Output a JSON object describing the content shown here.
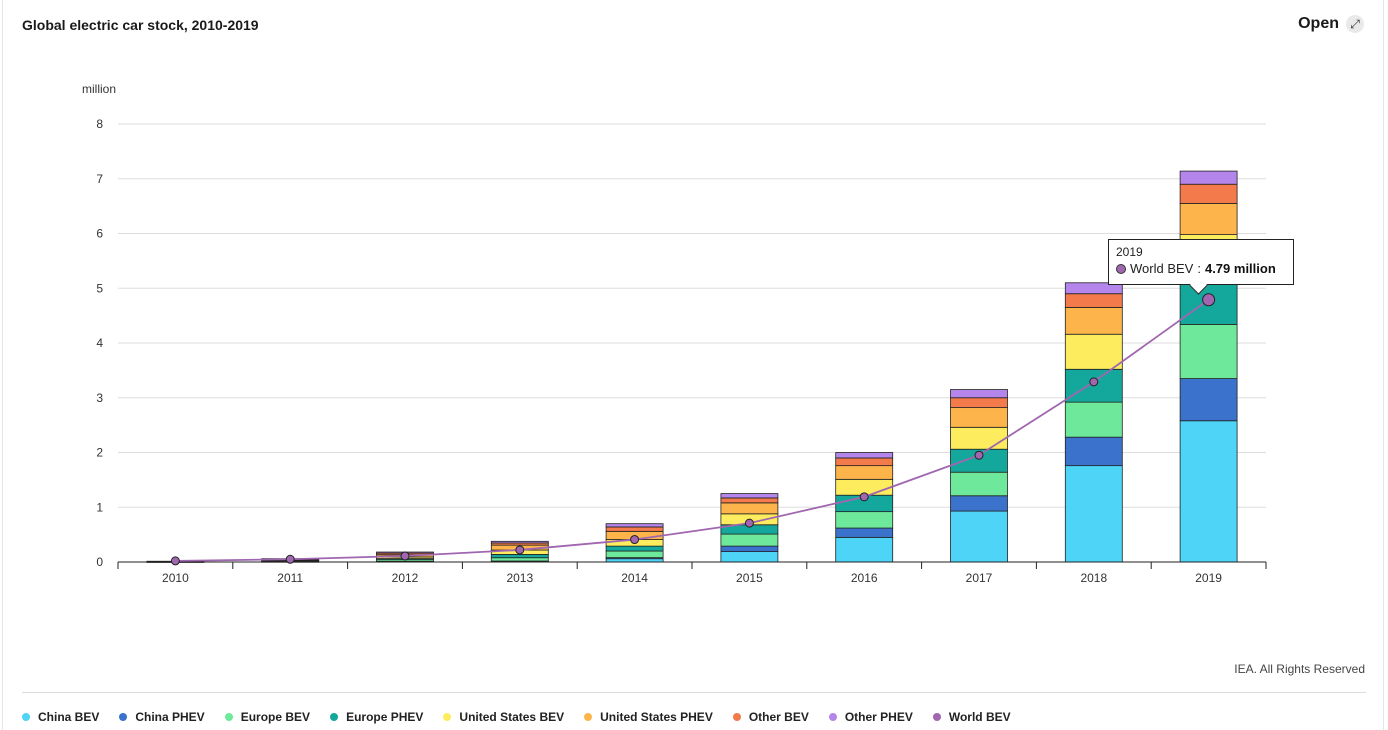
{
  "header": {
    "title": "Global electric car stock, 2010-2019",
    "open_label": "Open",
    "open_icon": "expand-icon"
  },
  "footer": {
    "credit": "IEA. All Rights Reserved"
  },
  "tooltip": {
    "year": "2019",
    "series": "World BEV",
    "value": "4.79 million"
  },
  "chart_data": {
    "type": "bar",
    "stacked": true,
    "unit_label": "million",
    "ylim": [
      0,
      8
    ],
    "yticks": [
      0,
      1,
      2,
      3,
      4,
      5,
      6,
      7,
      8
    ],
    "grid": true,
    "legend_position": "bottom",
    "categories": [
      "2010",
      "2011",
      "2012",
      "2013",
      "2014",
      "2015",
      "2016",
      "2017",
      "2018",
      "2019"
    ],
    "series": [
      {
        "name": "China BEV",
        "color": "#4dd4f7",
        "values": [
          0.001,
          0.005,
          0.01,
          0.015,
          0.06,
          0.19,
          0.45,
          0.93,
          1.76,
          2.58
        ]
      },
      {
        "name": "China PHEV",
        "color": "#3b73cc",
        "values": [
          0.0,
          0.0,
          0.002,
          0.003,
          0.02,
          0.1,
          0.17,
          0.28,
          0.52,
          0.77
        ]
      },
      {
        "name": "Europe BEV",
        "color": "#6ee89a",
        "values": [
          0.005,
          0.01,
          0.03,
          0.06,
          0.12,
          0.22,
          0.3,
          0.43,
          0.64,
          0.99
        ]
      },
      {
        "name": "Europe PHEV",
        "color": "#14a89c",
        "values": [
          0.0,
          0.005,
          0.02,
          0.06,
          0.09,
          0.17,
          0.3,
          0.42,
          0.6,
          0.76
        ]
      },
      {
        "name": "United States BEV",
        "color": "#fded5e",
        "values": [
          0.003,
          0.01,
          0.03,
          0.08,
          0.12,
          0.2,
          0.29,
          0.4,
          0.64,
          0.88
        ]
      },
      {
        "name": "United States PHEV",
        "color": "#fdb44b",
        "values": [
          0.0,
          0.008,
          0.04,
          0.09,
          0.15,
          0.2,
          0.25,
          0.36,
          0.49,
          0.57
        ]
      },
      {
        "name": "Other BEV",
        "color": "#f37a4a",
        "values": [
          0.005,
          0.02,
          0.03,
          0.04,
          0.08,
          0.09,
          0.14,
          0.18,
          0.25,
          0.35
        ]
      },
      {
        "name": "Other PHEV",
        "color": "#b485ea",
        "values": [
          0.0,
          0.002,
          0.02,
          0.03,
          0.06,
          0.08,
          0.1,
          0.15,
          0.2,
          0.24
        ]
      }
    ],
    "line_series": {
      "name": "World BEV",
      "color": "#a066b0",
      "values": [
        0.02,
        0.05,
        0.11,
        0.22,
        0.41,
        0.71,
        1.19,
        1.95,
        3.29,
        4.79
      ]
    }
  }
}
